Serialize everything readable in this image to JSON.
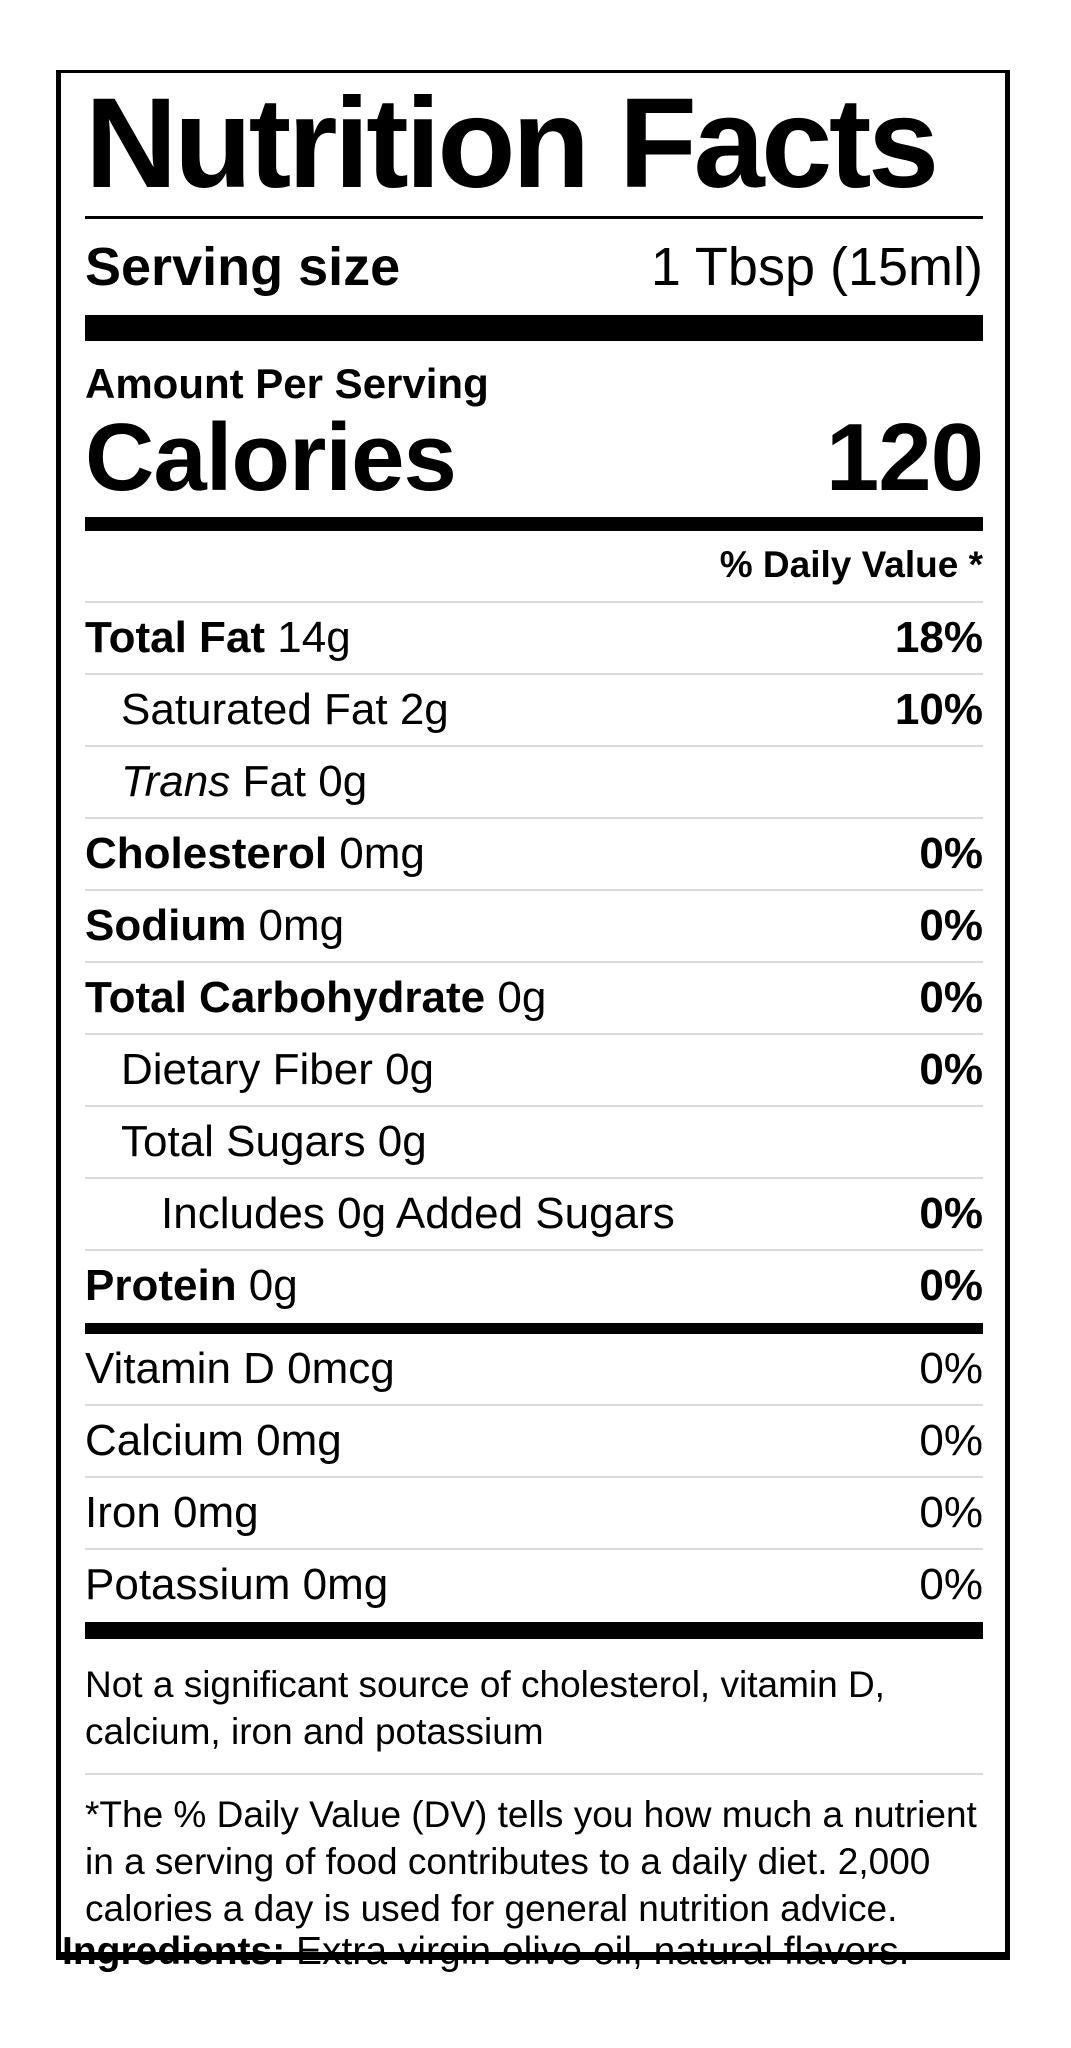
{
  "label": {
    "title": "Nutrition Facts",
    "serving": {
      "label": "Serving size",
      "value": "1 Tbsp (15ml)"
    },
    "amount_per_serving": "Amount Per Serving",
    "calories": {
      "label": "Calories",
      "value": "120"
    },
    "daily_value_header": "% Daily Value *",
    "nutrients": [
      {
        "name": "Total Fat",
        "amount": "14g",
        "dv": "18%",
        "name_bold": true,
        "name_italic": false,
        "dv_bold": true,
        "indent": 0
      },
      {
        "name": "Saturated Fat",
        "amount": "2g",
        "dv": "10%",
        "name_bold": false,
        "name_italic": false,
        "dv_bold": true,
        "indent": 1
      },
      {
        "name": "Trans",
        "rest": "Fat",
        "amount": "0g",
        "dv": "",
        "name_bold": false,
        "name_italic": true,
        "dv_bold": true,
        "indent": 1
      },
      {
        "name": "Cholesterol",
        "amount": "0mg",
        "dv": "0%",
        "name_bold": true,
        "name_italic": false,
        "dv_bold": true,
        "indent": 0
      },
      {
        "name": "Sodium",
        "amount": "0mg",
        "dv": "0%",
        "name_bold": true,
        "name_italic": false,
        "dv_bold": true,
        "indent": 0
      },
      {
        "name": "Total Carbohydrate",
        "amount": "0g",
        "dv": "0%",
        "name_bold": true,
        "name_italic": false,
        "dv_bold": true,
        "indent": 0
      },
      {
        "name": "Dietary Fiber",
        "amount": "0g",
        "dv": "0%",
        "name_bold": false,
        "name_italic": false,
        "dv_bold": true,
        "indent": 1
      },
      {
        "name": "Total Sugars",
        "amount": "0g",
        "dv": "",
        "name_bold": false,
        "name_italic": false,
        "dv_bold": true,
        "indent": 1
      },
      {
        "name": "Includes 0g Added Sugars",
        "amount": "",
        "dv": "0%",
        "name_bold": false,
        "name_italic": false,
        "dv_bold": true,
        "indent": 2
      },
      {
        "name": "Protein",
        "amount": "0g",
        "dv": "0%",
        "name_bold": true,
        "name_italic": false,
        "dv_bold": true,
        "indent": 0
      }
    ],
    "vitamins": [
      {
        "name": "Vitamin D",
        "amount": "0mcg",
        "dv": "0%",
        "name_bold": false,
        "name_italic": false,
        "dv_bold": false,
        "indent": 0
      },
      {
        "name": "Calcium",
        "amount": "0mg",
        "dv": "0%",
        "name_bold": false,
        "name_italic": false,
        "dv_bold": false,
        "indent": 0
      },
      {
        "name": "Iron",
        "amount": "0mg",
        "dv": "0%",
        "name_bold": false,
        "name_italic": false,
        "dv_bold": false,
        "indent": 0
      },
      {
        "name": "Potassium",
        "amount": "0mg",
        "dv": "0%",
        "name_bold": false,
        "name_italic": false,
        "dv_bold": false,
        "indent": 0
      }
    ],
    "not_significant_note": "Not a significant source of cholesterol, vitamin D, calcium, iron and potassium",
    "footnote": "*The % Daily Value (DV) tells you how much a nutrient in a serving of food contributes to a daily diet. 2,000 calories a day is used for general nutrition advice."
  },
  "ingredients": {
    "label": "Ingredients:",
    "value": "Extra virgin olive oil, natural flavors."
  }
}
